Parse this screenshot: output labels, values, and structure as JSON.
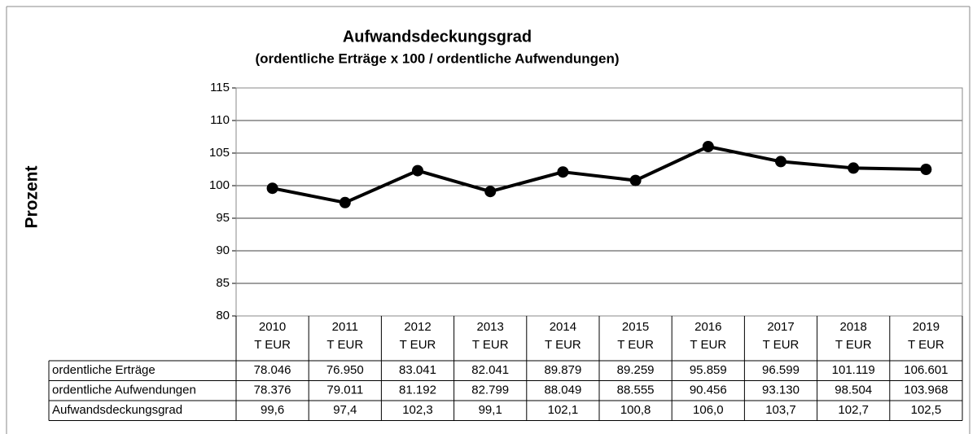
{
  "chart_data": {
    "type": "line",
    "title": "Aufwandsdeckungsgrad",
    "subtitle": "(ordentliche Erträge x 100 / ordentliche Aufwendungen)",
    "y_label": "Prozent",
    "categories": [
      "2010",
      "2011",
      "2012",
      "2013",
      "2014",
      "2015",
      "2016",
      "2017",
      "2018",
      "2019"
    ],
    "category_unit": "T EUR",
    "series": [
      {
        "name": "Aufwandsdeckungsgrad",
        "color": "#000000",
        "values": [
          99.6,
          97.4,
          102.3,
          99.1,
          102.1,
          100.8,
          106.0,
          103.7,
          102.7,
          102.5
        ],
        "value_labels": [
          "99,6",
          "97,4",
          "102,3",
          "99,1",
          "102,1",
          "100,8",
          "106,0",
          "103,7",
          "102,7",
          "102,5"
        ]
      }
    ],
    "data_table": [
      {
        "name": "ordentliche Erträge",
        "values": [
          78046,
          76950,
          83041,
          82041,
          89879,
          89259,
          95859,
          96599,
          101119,
          106601
        ],
        "value_labels": [
          "78.046",
          "76.950",
          "83.041",
          "82.041",
          "89.879",
          "89.259",
          "95.859",
          "96.599",
          "101.119",
          "106.601"
        ]
      },
      {
        "name": "ordentliche Aufwendungen",
        "values": [
          78376,
          79011,
          81192,
          82799,
          88049,
          88555,
          90456,
          93130,
          98504,
          103968
        ],
        "value_labels": [
          "78.376",
          "79.011",
          "81.192",
          "82.799",
          "88.049",
          "88.555",
          "90.456",
          "93.130",
          "98.504",
          "103.968"
        ]
      }
    ],
    "ylim": [
      80,
      115
    ],
    "yticks": [
      80,
      85,
      90,
      95,
      100,
      105,
      110,
      115
    ],
    "grid": true
  }
}
